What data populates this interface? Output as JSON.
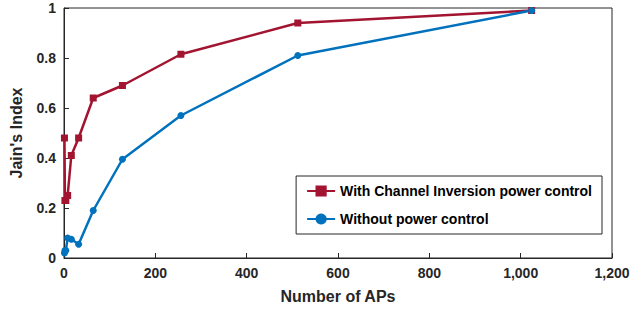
{
  "chart_data": {
    "type": "line",
    "x_label": "Number of APs",
    "y_label": "Jain's Index",
    "xlim": [
      0,
      1200
    ],
    "xticks": [
      0,
      200,
      400,
      600,
      800,
      1000,
      1200
    ],
    "ylim": [
      0,
      1
    ],
    "yticks": [
      0,
      0.2,
      0.4,
      0.6,
      0.8,
      1
    ],
    "grid": false,
    "legend": "lower right",
    "series": [
      {
        "name": "With Channel Inversion power control",
        "color": "#a2142f",
        "marker": "square",
        "x": [
          1,
          2,
          4,
          8,
          16,
          32,
          64,
          128,
          256,
          512,
          1024
        ],
        "values": [
          0.48,
          0.23,
          0.23,
          0.25,
          0.41,
          0.48,
          0.64,
          0.69,
          0.815,
          0.94,
          0.99
        ]
      },
      {
        "name": "Without power control",
        "color": "#0072bd",
        "marker": "circle",
        "x": [
          1,
          2,
          4,
          8,
          16,
          32,
          64,
          128,
          256,
          512,
          1024
        ],
        "values": [
          0.02,
          0.03,
          0.03,
          0.08,
          0.075,
          0.055,
          0.19,
          0.395,
          0.57,
          0.81,
          0.99
        ]
      }
    ]
  }
}
